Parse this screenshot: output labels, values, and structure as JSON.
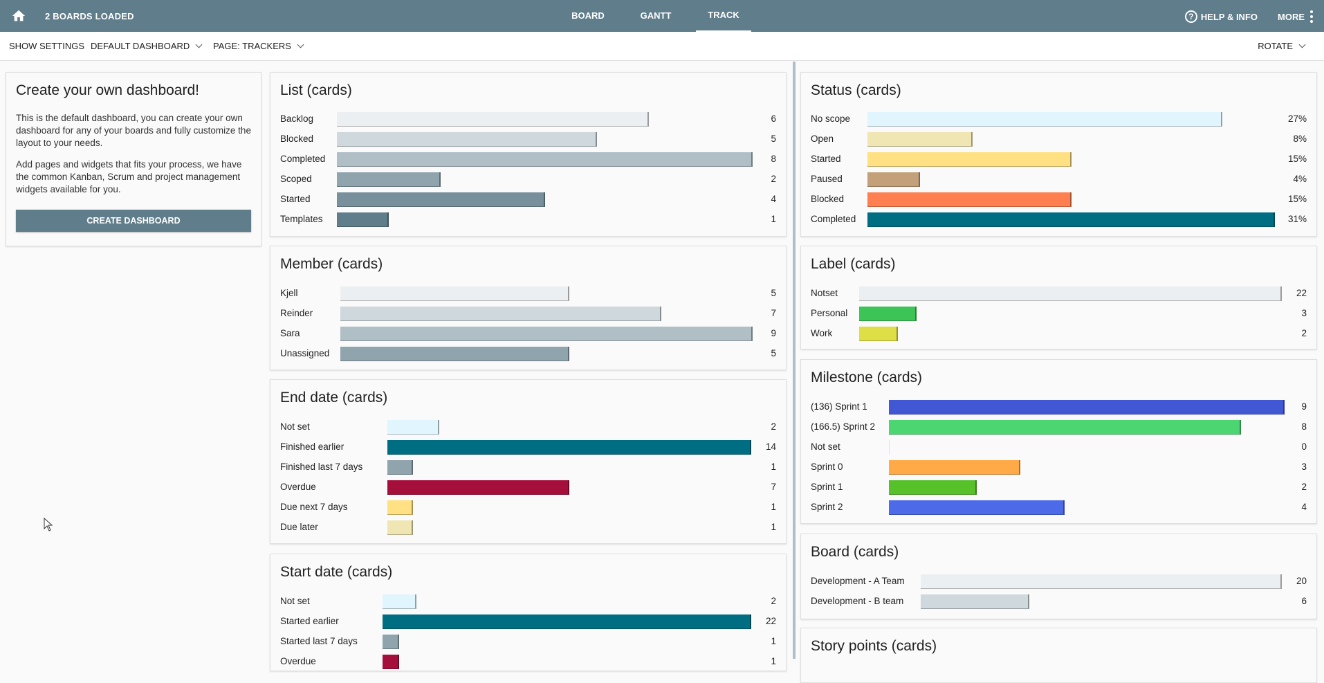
{
  "topbar": {
    "title": "2 BOARDS LOADED",
    "nav": [
      {
        "label": "BOARD",
        "active": false
      },
      {
        "label": "GANTT",
        "active": false
      },
      {
        "label": "TRACK",
        "active": true
      }
    ],
    "help_label": "HELP & INFO",
    "more_label": "MORE",
    "icons": [
      "home-icon",
      "help-icon",
      "more-vert-icon"
    ]
  },
  "subbar": {
    "show_settings": "SHOW SETTINGS",
    "dashboard": "DEFAULT DASHBOARD",
    "page": "PAGE: TRACKERS",
    "rotate": "ROTATE"
  },
  "intro": {
    "title": "Create your own dashboard!",
    "p1": "This is the default dashboard, you can create your own dashboard for any of your boards and fully customize the layout to your needs.",
    "p2": "Add pages and widgets that fits your process, we have the common Kanban, Scrum and project management widgets available for you.",
    "button": "CREATE DASHBOARD"
  },
  "widgets": {
    "list": {
      "title": "List (cards)",
      "rows": [
        {
          "label": "Backlog",
          "value": "6",
          "fraction": 0.75,
          "color": "#eceff1"
        },
        {
          "label": "Blocked",
          "value": "5",
          "fraction": 0.625,
          "color": "#cfd8dc"
        },
        {
          "label": "Completed",
          "value": "8",
          "fraction": 1.0,
          "color": "#b0bec5"
        },
        {
          "label": "Scoped",
          "value": "2",
          "fraction": 0.25,
          "color": "#90a4ae"
        },
        {
          "label": "Started",
          "value": "4",
          "fraction": 0.5,
          "color": "#78909c"
        },
        {
          "label": "Templates",
          "value": "1",
          "fraction": 0.125,
          "color": "#607d8b"
        }
      ]
    },
    "member": {
      "title": "Member (cards)",
      "rows": [
        {
          "label": "Kjell",
          "value": "5",
          "fraction": 0.556,
          "color": "#eceff1"
        },
        {
          "label": "Reinder",
          "value": "7",
          "fraction": 0.778,
          "color": "#cfd8dc"
        },
        {
          "label": "Sara",
          "value": "9",
          "fraction": 1.0,
          "color": "#b0bec5"
        },
        {
          "label": "Unassigned",
          "value": "5",
          "fraction": 0.556,
          "color": "#90a4ae"
        }
      ]
    },
    "enddate": {
      "title": "End date (cards)",
      "rows": [
        {
          "label": "Not set",
          "value": "2",
          "fraction": 0.143,
          "color": "#e1f5fe"
        },
        {
          "label": "Finished earlier",
          "value": "14",
          "fraction": 1.0,
          "color": "#006e82"
        },
        {
          "label": "Finished last 7 days",
          "value": "1",
          "fraction": 0.071,
          "color": "#90a4ae"
        },
        {
          "label": "Overdue",
          "value": "7",
          "fraction": 0.5,
          "color": "#a50f3c"
        },
        {
          "label": "Due next 7 days",
          "value": "1",
          "fraction": 0.071,
          "color": "#ffe082"
        },
        {
          "label": "Due later",
          "value": "1",
          "fraction": 0.071,
          "color": "#f0e6b4"
        }
      ]
    },
    "startdate": {
      "title": "Start date (cards)",
      "rows": [
        {
          "label": "Not set",
          "value": "2",
          "fraction": 0.091,
          "color": "#e1f5fe"
        },
        {
          "label": "Started earlier",
          "value": "22",
          "fraction": 1.0,
          "color": "#006e82"
        },
        {
          "label": "Started last 7 days",
          "value": "1",
          "fraction": 0.045,
          "color": "#90a4ae"
        },
        {
          "label": "Overdue",
          "value": "1",
          "fraction": 0.045,
          "color": "#a50f3c"
        }
      ]
    },
    "status": {
      "title": "Status (cards)",
      "rows": [
        {
          "label": "No scope",
          "value": "27%",
          "fraction": 0.871,
          "color": "#e1f5fe"
        },
        {
          "label": "Open",
          "value": "8%",
          "fraction": 0.258,
          "color": "#f0e6b4"
        },
        {
          "label": "Started",
          "value": "15%",
          "fraction": 0.5,
          "color": "#ffe082"
        },
        {
          "label": "Paused",
          "value": "4%",
          "fraction": 0.129,
          "color": "#c4a07a"
        },
        {
          "label": "Blocked",
          "value": "15%",
          "fraction": 0.5,
          "color": "#ff7f50"
        },
        {
          "label": "Completed",
          "value": "31%",
          "fraction": 1.0,
          "color": "#006e82"
        }
      ]
    },
    "label": {
      "title": "Label (cards)",
      "rows": [
        {
          "label": "Notset",
          "value": "22",
          "fraction": 1.0,
          "color": "#eceff1"
        },
        {
          "label": "Personal",
          "value": "3",
          "fraction": 0.136,
          "color": "#3dc456"
        },
        {
          "label": "Work",
          "value": "2",
          "fraction": 0.091,
          "color": "#dede46"
        }
      ]
    },
    "milestone": {
      "title": "Milestone (cards)",
      "rows": [
        {
          "label": "(136) Sprint 1",
          "value": "9",
          "fraction": 1.0,
          "color": "#4257d4"
        },
        {
          "label": "(166.5) Sprint 2",
          "value": "8",
          "fraction": 0.889,
          "color": "#4cd672"
        },
        {
          "label": "Not set",
          "value": "0",
          "fraction": 0.0,
          "color": "#eceff1"
        },
        {
          "label": "Sprint 0",
          "value": "3",
          "fraction": 0.333,
          "color": "#ffa947"
        },
        {
          "label": "Sprint 1",
          "value": "2",
          "fraction": 0.222,
          "color": "#57c12a"
        },
        {
          "label": "Sprint 2",
          "value": "4",
          "fraction": 0.444,
          "color": "#4d6be8"
        }
      ]
    },
    "board": {
      "title": "Board (cards)",
      "rows": [
        {
          "label": "Development - A Team",
          "value": "20",
          "fraction": 1.0,
          "color": "#eceff1"
        },
        {
          "label": "Development - B team",
          "value": "6",
          "fraction": 0.3,
          "color": "#cfd8dc"
        }
      ]
    },
    "storypoints": {
      "title": "Story points (cards)",
      "rows": []
    }
  }
}
